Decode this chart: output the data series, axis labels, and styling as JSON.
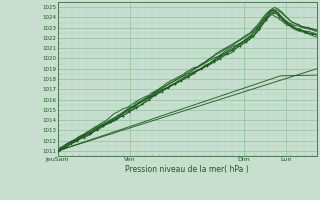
{
  "title": "Pression niveau de la mer( hPa )",
  "ylim": [
    1010.5,
    1025.5
  ],
  "yticks": [
    1011,
    1012,
    1013,
    1014,
    1015,
    1016,
    1017,
    1018,
    1019,
    1020,
    1021,
    1022,
    1023,
    1024,
    1025
  ],
  "xtick_labels": [
    "JeuSam",
    "Ven",
    "Dim",
    "Lun"
  ],
  "xtick_positions": [
    0.0,
    0.28,
    0.72,
    0.88
  ],
  "bg_color": "#c8dfd0",
  "grid_color_major": "#90c0a0",
  "grid_color_minor": "#b0d8c0",
  "line_color": "#1a5a1a",
  "n_points": 200,
  "xlim": [
    0.0,
    1.0
  ]
}
